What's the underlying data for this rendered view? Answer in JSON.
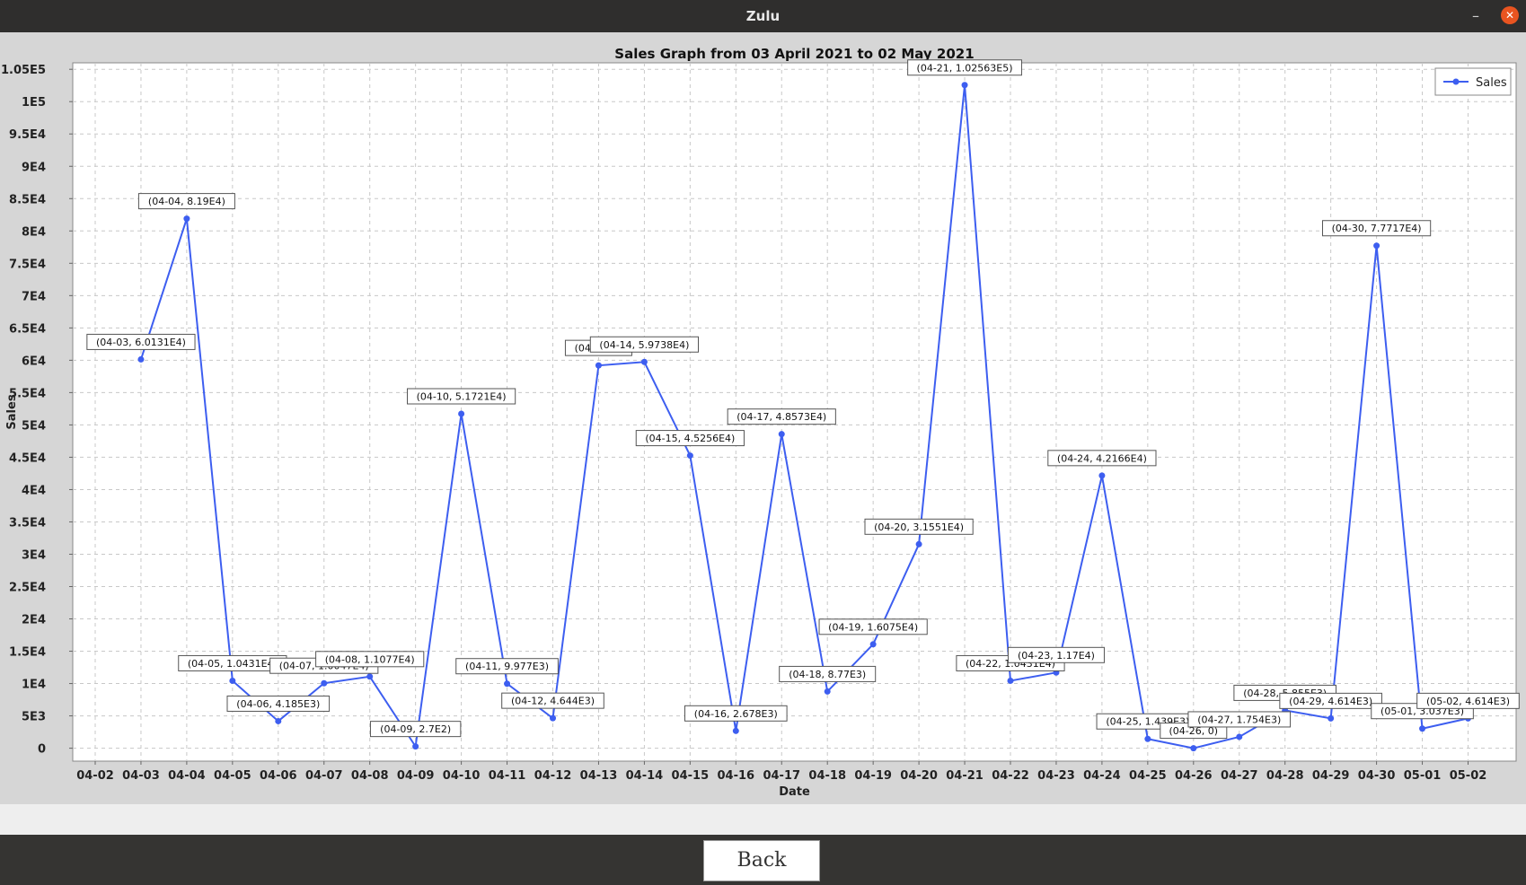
{
  "window": {
    "title": "Zulu"
  },
  "footer": {
    "back_label": "Back"
  },
  "chart_data": {
    "type": "line",
    "title": "Sales Graph from 03 April 2021 to 02 May 2021",
    "xlabel": "Date",
    "ylabel": "Sales",
    "x_ticks": [
      "04-02",
      "04-03",
      "04-04",
      "04-05",
      "04-06",
      "04-07",
      "04-08",
      "04-09",
      "04-10",
      "04-11",
      "04-12",
      "04-13",
      "04-14",
      "04-15",
      "04-16",
      "04-17",
      "04-18",
      "04-19",
      "04-20",
      "04-21",
      "04-22",
      "04-23",
      "04-24",
      "04-25",
      "04-26",
      "04-27",
      "04-28",
      "04-29",
      "04-30",
      "05-01",
      "05-02"
    ],
    "y_ticks": [
      "0",
      "5E3",
      "1E4",
      "1.5E4",
      "2E4",
      "2.5E4",
      "3E4",
      "3.5E4",
      "4E4",
      "4.5E4",
      "5E4",
      "5.5E4",
      "6E4",
      "6.5E4",
      "7E4",
      "7.5E4",
      "8E4",
      "8.5E4",
      "9E4",
      "9.5E4",
      "1E5",
      "1.05E5"
    ],
    "ylim": [
      -2000,
      106000
    ],
    "grid": true,
    "legend_position": "top-right",
    "series_color": "#3d5ef0",
    "series": [
      {
        "name": "Sales",
        "points": [
          {
            "x": "04-03",
            "y": 60131,
            "label": "(04-03, 6.0131E4)"
          },
          {
            "x": "04-04",
            "y": 81900,
            "label": "(04-04, 8.19E4)"
          },
          {
            "x": "04-05",
            "y": 10431,
            "label": "(04-05, 1.0431E4)"
          },
          {
            "x": "04-06",
            "y": 4185,
            "label": "(04-06, 4.185E3)"
          },
          {
            "x": "04-07",
            "y": 10047,
            "label": "(04-07, 1.0047E4)"
          },
          {
            "x": "04-08",
            "y": 11077,
            "label": "(04-08, 1.1077E4)"
          },
          {
            "x": "04-09",
            "y": 270,
            "label": "(04-09, 2.7E2)"
          },
          {
            "x": "04-10",
            "y": 51721,
            "label": "(04-10, 5.1721E4)"
          },
          {
            "x": "04-11",
            "y": 9977,
            "label": "(04-11, 9.977E3)"
          },
          {
            "x": "04-12",
            "y": 4644,
            "label": "(04-12, 4.644E3)"
          },
          {
            "x": "04-13",
            "y": 59200,
            "label": "(04-13, 5."
          },
          {
            "x": "04-14",
            "y": 59738,
            "label": "(04-14, 5.9738E4)"
          },
          {
            "x": "04-15",
            "y": 45256,
            "label": "(04-15, 4.5256E4)"
          },
          {
            "x": "04-16",
            "y": 2678,
            "label": "(04-16, 2.678E3)"
          },
          {
            "x": "04-17",
            "y": 48573,
            "label": "(04-17, 4.8573E4)"
          },
          {
            "x": "04-18",
            "y": 8770,
            "label": "(04-18, 8.77E3)"
          },
          {
            "x": "04-19",
            "y": 16075,
            "label": "(04-19, 1.6075E4)"
          },
          {
            "x": "04-20",
            "y": 31551,
            "label": "(04-20, 3.1551E4)"
          },
          {
            "x": "04-21",
            "y": 102563,
            "label": "(04-21, 1.02563E5)"
          },
          {
            "x": "04-22",
            "y": 10431,
            "label": "(04-22, 1.0431E4)"
          },
          {
            "x": "04-23",
            "y": 11700,
            "label": "(04-23, 1.17E4)"
          },
          {
            "x": "04-24",
            "y": 42166,
            "label": "(04-24, 4.2166E4)"
          },
          {
            "x": "04-25",
            "y": 1439,
            "label": "(04-25, 1.439E3)"
          },
          {
            "x": "04-26",
            "y": 0,
            "label": "(04-26, 0)"
          },
          {
            "x": "04-27",
            "y": 1754,
            "label": "(04-27, 1.754E3)"
          },
          {
            "x": "04-28",
            "y": 5855,
            "label": "(04-28, 5.855E3)"
          },
          {
            "x": "04-29",
            "y": 4614,
            "label": "(04-29, 4.614E3)"
          },
          {
            "x": "04-30",
            "y": 77717,
            "label": "(04-30, 7.7717E4)"
          },
          {
            "x": "05-01",
            "y": 3037,
            "label": "(05-01, 3.037E3)"
          },
          {
            "x": "05-02",
            "y": 4614,
            "label": "(05-02, 4.614E3)"
          }
        ]
      }
    ]
  }
}
